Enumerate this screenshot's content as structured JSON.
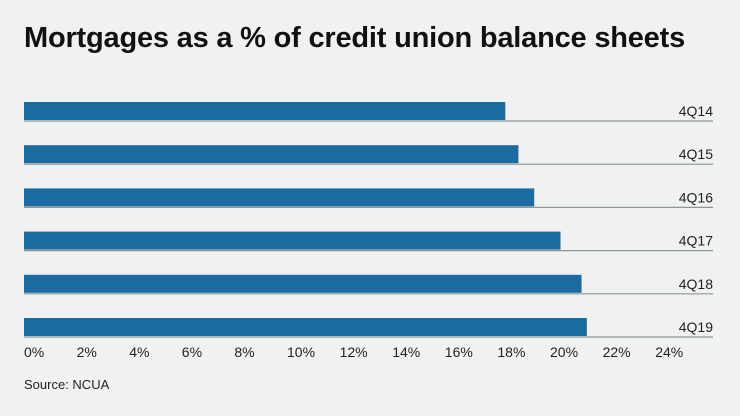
{
  "chart_data": {
    "type": "bar",
    "orientation": "horizontal",
    "title": "Mortgages as a % of credit union balance sheets",
    "categories": [
      "4Q14",
      "4Q15",
      "4Q16",
      "4Q17",
      "4Q18",
      "4Q19"
    ],
    "values": [
      18.3,
      18.8,
      19.4,
      20.4,
      21.2,
      21.4
    ],
    "xlim": [
      0,
      24
    ],
    "xticks": [
      "0%",
      "2%",
      "4%",
      "6%",
      "8%",
      "10%",
      "12%",
      "14%",
      "16%",
      "18%",
      "20%",
      "22%",
      "24%"
    ],
    "xlabel": "",
    "ylabel": "",
    "grid": false,
    "bar_color": "#1b6aa0",
    "source": "Source: NCUA"
  }
}
